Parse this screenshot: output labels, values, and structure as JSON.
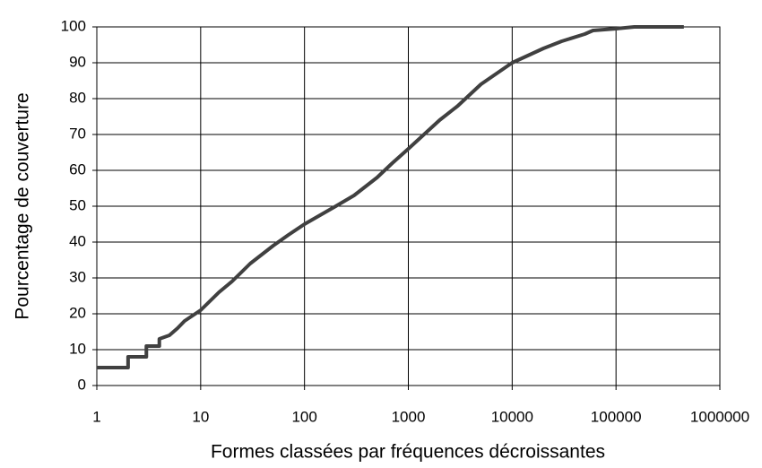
{
  "chart_data": {
    "type": "line",
    "x_label": "Formes classées par fréquences décroissantes",
    "y_label": "Pourcentage de couverture",
    "x_scale": "log",
    "grid": true,
    "xlim": [
      1,
      1000000
    ],
    "ylim": [
      0,
      100
    ],
    "xticks": [
      1,
      10,
      100,
      1000,
      10000,
      100000,
      1000000
    ],
    "yticks": [
      0,
      10,
      20,
      30,
      40,
      50,
      60,
      70,
      80,
      90,
      100
    ],
    "x": [
      1,
      2,
      2,
      3,
      3,
      4,
      4,
      5,
      6,
      7,
      10,
      15,
      20,
      30,
      50,
      70,
      100,
      200,
      300,
      500,
      700,
      1000,
      2000,
      3000,
      5000,
      10000,
      20000,
      30000,
      50000,
      60000,
      100000,
      150000,
      450000
    ],
    "series": [
      {
        "color": "#404040",
        "values": [
          5,
          5,
          8,
          8,
          11,
          11,
          13,
          14,
          16,
          18,
          21,
          26,
          29,
          34,
          39,
          42,
          45,
          50,
          53,
          58,
          62,
          66,
          74,
          78,
          84,
          90,
          94,
          96,
          98,
          99,
          99.5,
          100,
          100
        ]
      }
    ]
  }
}
